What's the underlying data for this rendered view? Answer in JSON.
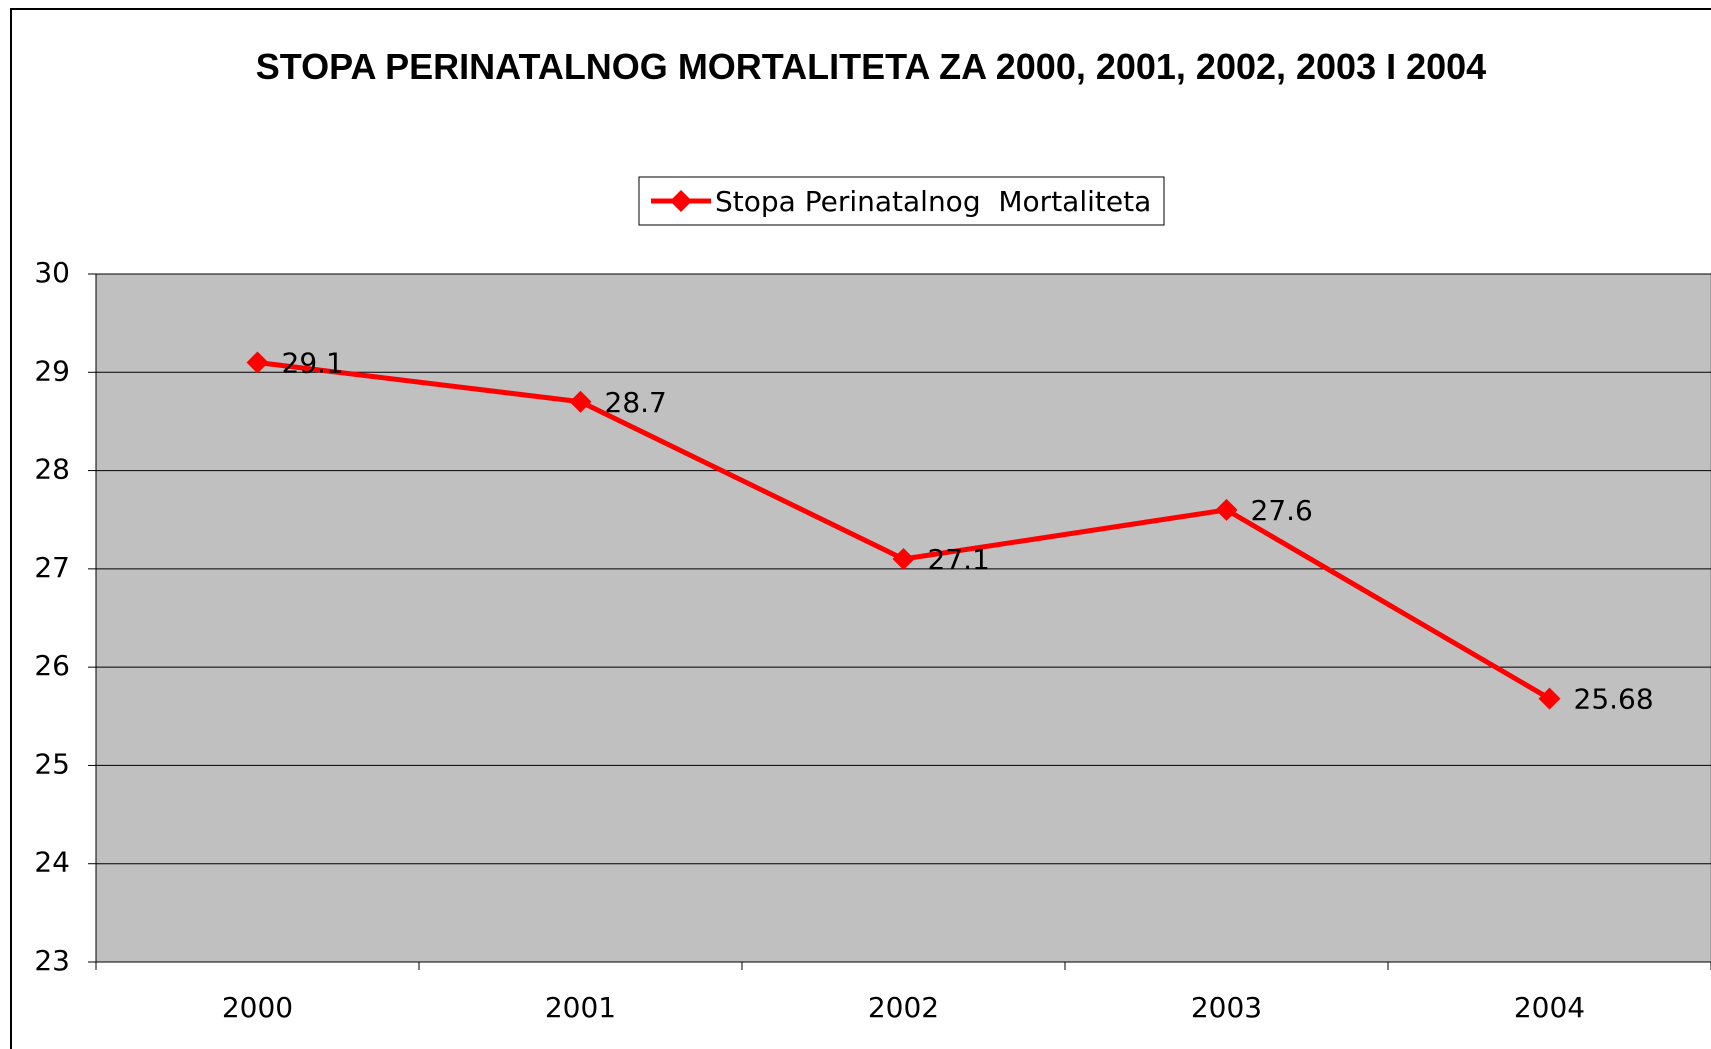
{
  "chart_data": {
    "type": "line",
    "title": "STOPA PERINATALNOG MORTALITETA ZA 2000, 2001, 2002, 2003 I 2004",
    "categories": [
      "2000",
      "2001",
      "2002",
      "2003",
      "2004"
    ],
    "series": [
      {
        "name": "Stopa Perinatalnog  Mortaliteta",
        "color": "#ff0000",
        "values": [
          29.1,
          28.7,
          27.1,
          27.6,
          25.68
        ]
      }
    ],
    "ylim": [
      23,
      30
    ],
    "yticks": [
      23,
      24,
      25,
      26,
      27,
      28,
      29,
      30
    ],
    "grid": true,
    "legend": "top",
    "plot_background": "#c0c0c0"
  }
}
